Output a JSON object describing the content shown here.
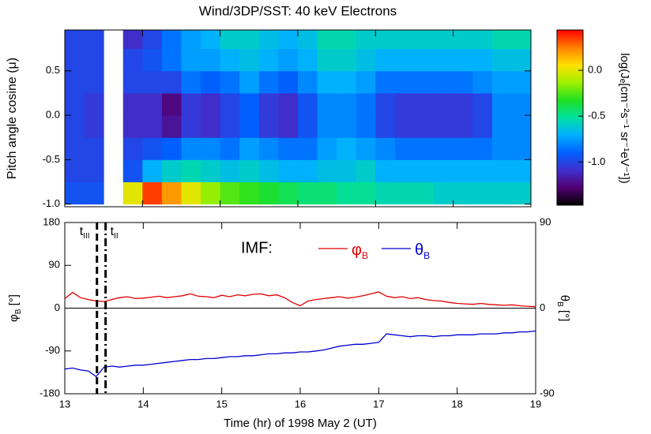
{
  "chart_data": [
    {
      "type": "heatmap",
      "title": "Wind/3DP/SST: 40 keV Electrons",
      "y_label": "Pitch angle cosine (μ)",
      "x_bins": [
        13,
        13.25,
        13.5,
        13.75,
        14,
        14.25,
        14.5,
        14.75,
        15,
        15.25,
        15.5,
        15.75,
        16,
        16.25,
        16.5,
        16.75,
        17,
        17.25,
        17.5,
        17.75,
        18,
        18.25,
        18.5,
        18.75,
        19
      ],
      "y_bins": [
        -1,
        -0.75,
        -0.5,
        -0.25,
        0,
        0.25,
        0.5,
        0.75,
        1
      ],
      "z": [
        [
          -0.95,
          -0.95,
          null,
          0.0,
          0.35,
          0.2,
          0.0,
          -0.15,
          -0.25,
          -0.3,
          -0.35,
          -0.4,
          -0.45,
          -0.45,
          -0.5,
          -0.5,
          -0.55,
          -0.55,
          -0.55,
          -0.6,
          -0.6,
          -0.6,
          -0.6,
          -0.6
        ],
        [
          -1.0,
          -1.0,
          null,
          -0.95,
          -0.7,
          -0.6,
          -0.55,
          -0.6,
          -0.65,
          -0.6,
          -0.65,
          -0.7,
          -0.7,
          -0.65,
          -0.65,
          -0.6,
          -0.7,
          -0.7,
          -0.7,
          -0.7,
          -0.7,
          -0.7,
          -0.7,
          -0.7
        ],
        [
          -1.0,
          -1.0,
          null,
          -1.0,
          -0.95,
          -0.9,
          -0.8,
          -0.8,
          -0.85,
          -0.75,
          -0.8,
          -0.85,
          -0.85,
          -0.75,
          -0.7,
          -0.75,
          -0.8,
          -0.85,
          -0.85,
          -0.85,
          -0.85,
          -0.85,
          -0.8,
          -0.8
        ],
        [
          -1.0,
          -1.05,
          null,
          -1.1,
          -1.1,
          -1.2,
          -1.05,
          -1.1,
          -1.0,
          -0.9,
          -1.05,
          -1.1,
          -0.95,
          -0.8,
          -0.8,
          -0.85,
          -1.0,
          -1.05,
          -1.05,
          -1.05,
          -1.05,
          -1.0,
          -0.8,
          -0.8
        ],
        [
          -1.0,
          -1.05,
          null,
          -1.1,
          -1.1,
          -1.25,
          -1.05,
          -1.1,
          -1.0,
          -0.9,
          -1.05,
          -1.1,
          -0.95,
          -0.8,
          -0.8,
          -0.85,
          -1.0,
          -1.05,
          -1.05,
          -1.05,
          -1.05,
          -1.0,
          -0.8,
          -0.8
        ],
        [
          -1.0,
          -1.0,
          null,
          -1.0,
          -1.0,
          -1.0,
          -0.85,
          -0.9,
          -0.85,
          -0.75,
          -0.85,
          -0.9,
          -0.8,
          -0.7,
          -0.7,
          -0.75,
          -0.85,
          -0.85,
          -0.85,
          -0.85,
          -0.85,
          -0.8,
          -0.75,
          -0.75
        ],
        [
          -1.0,
          -1.0,
          null,
          -1.0,
          -0.95,
          -0.85,
          -0.75,
          -0.75,
          -0.7,
          -0.65,
          -0.7,
          -0.75,
          -0.7,
          -0.6,
          -0.6,
          -0.65,
          -0.7,
          -0.7,
          -0.7,
          -0.7,
          -0.7,
          -0.7,
          -0.65,
          -0.65
        ],
        [
          -1.0,
          -1.0,
          null,
          -1.1,
          -1.0,
          -0.85,
          -0.75,
          -0.7,
          -0.6,
          -0.6,
          -0.65,
          -0.7,
          -0.65,
          -0.55,
          -0.55,
          -0.6,
          -0.6,
          -0.6,
          -0.6,
          -0.6,
          -0.6,
          -0.6,
          -0.55,
          -0.55
        ]
      ],
      "xlim": [
        13,
        19
      ],
      "xticks": [
        13,
        14,
        15,
        16,
        17,
        18,
        19
      ],
      "ylim": [
        -1.03,
        0.96
      ],
      "yticks": [
        {
          "value": -1,
          "label": "-1.0"
        },
        -0.5,
        {
          "value": 0,
          "label": "0.0"
        },
        0.5
      ],
      "colorbar": {
        "label": "log(Jₑ[cm⁻²s⁻¹ sr⁻¹eV⁻¹])",
        "zlim": [
          -1.47,
          0.44
        ],
        "ticks": [
          {
            "value": 0,
            "label": "0.0"
          },
          -0.5,
          {
            "value": -1,
            "label": "-1.0"
          }
        ],
        "colorscale": [
          "#000000",
          "#500070",
          "#4030d0",
          "#0060ff",
          "#00b0ff",
          "#00e0a0",
          "#20e020",
          "#a0f000",
          "#ffe000",
          "#ff8000",
          "#ff0000"
        ]
      }
    },
    {
      "type": "line",
      "x_label": "Time (hr) of 1998 May 2 (UT)",
      "y_label": [
        "φ",
        "B",
        " [°]"
      ],
      "y2_label": [
        "θ",
        "B",
        " [°]"
      ],
      "legend_title": "IMF:",
      "x": [
        13.0,
        13.1,
        13.2,
        13.3,
        13.4,
        13.5,
        13.6,
        13.7,
        13.8,
        13.9,
        14.0,
        14.1,
        14.2,
        14.3,
        14.4,
        14.5,
        14.6,
        14.7,
        14.8,
        14.9,
        15.0,
        15.1,
        15.2,
        15.3,
        15.4,
        15.5,
        15.6,
        15.7,
        15.8,
        15.9,
        16.0,
        16.1,
        16.2,
        16.3,
        16.4,
        16.5,
        16.6,
        16.7,
        16.8,
        16.9,
        17.0,
        17.1,
        17.2,
        17.3,
        17.4,
        17.5,
        17.6,
        17.7,
        17.8,
        17.9,
        18.0,
        18.1,
        18.2,
        18.3,
        18.4,
        18.5,
        18.6,
        18.7,
        18.8,
        18.9,
        19.0
      ],
      "series": [
        {
          "name": [
            "φ",
            "B"
          ],
          "color": "#e00000",
          "values": [
            20,
            33,
            22,
            18,
            15,
            14,
            18,
            22,
            24,
            20,
            21,
            23,
            25,
            22,
            24,
            26,
            30,
            25,
            24,
            22,
            27,
            24,
            28,
            26,
            29,
            30,
            26,
            28,
            22,
            12,
            5,
            15,
            18,
            20,
            22,
            24,
            21,
            23,
            26,
            30,
            34,
            25,
            22,
            24,
            20,
            22,
            18,
            16,
            15,
            12,
            10,
            9,
            8,
            10,
            8,
            7,
            6,
            7,
            5,
            4,
            3
          ]
        },
        {
          "name": [
            "θ",
            "B"
          ],
          "color": "#0000d0",
          "axis": "y2",
          "values": [
            -64,
            -63,
            -65,
            -66,
            -72,
            -62,
            -61,
            -62,
            -61,
            -60,
            -60,
            -59,
            -58,
            -57,
            -56,
            -55,
            -54,
            -54,
            -53,
            -53,
            -52,
            -51,
            -51,
            -50,
            -50,
            -49,
            -48,
            -48,
            -47,
            -47,
            -46,
            -46,
            -45,
            -44,
            -42,
            -40,
            -39,
            -38,
            -38,
            -37,
            -36,
            -27,
            -28,
            -29,
            -30,
            -29,
            -29,
            -30,
            -29,
            -29,
            -28,
            -28,
            -28,
            -27,
            -27,
            -27,
            -26,
            -26,
            -25,
            -25,
            -24
          ]
        }
      ],
      "xlim": [
        13,
        19
      ],
      "xticks": [
        13,
        14,
        15,
        16,
        17,
        18,
        19
      ],
      "ylim": [
        -180,
        180
      ],
      "yticks": [
        -180,
        -90,
        0,
        90,
        180
      ],
      "y2lim": [
        -90,
        90
      ],
      "y2ticks": [
        -90,
        0,
        90
      ],
      "zero_line": true,
      "markers": [
        {
          "x": 13.41,
          "label": [
            "t",
            "III"
          ],
          "style": "dashed"
        },
        {
          "x": 13.52,
          "label": [
            "t",
            "II"
          ],
          "style": "dashdot"
        }
      ]
    }
  ]
}
